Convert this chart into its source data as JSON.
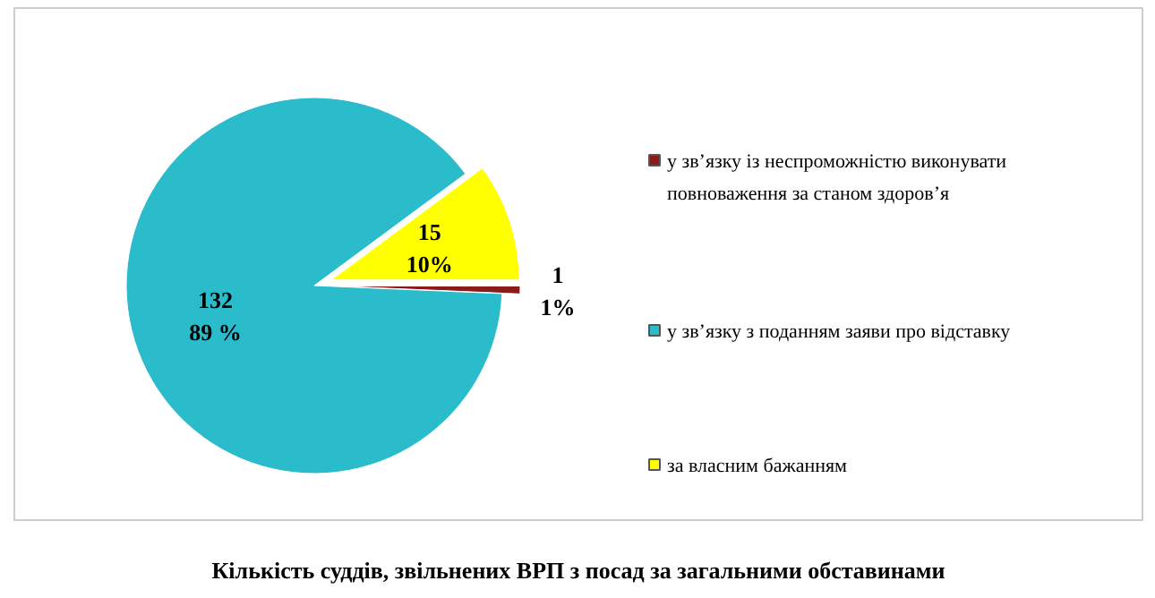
{
  "chart_data": {
    "type": "pie",
    "title": "Кількість суддів, звільнених ВРП з посад за загальними обставинами",
    "categories": [
      "у зв’язку із неспроможністю виконувати повноваження за станом здоров’я",
      "у зв’язку з поданням заяви про відставку",
      "за власним бажанням"
    ],
    "values": [
      1,
      132,
      15
    ],
    "colors": [
      "#8b1a1a",
      "#2bbccc",
      "#ffff00"
    ],
    "value_labels": [
      "1\n1%",
      "132\n89 %",
      "15\n10%"
    ],
    "legend": "right"
  }
}
